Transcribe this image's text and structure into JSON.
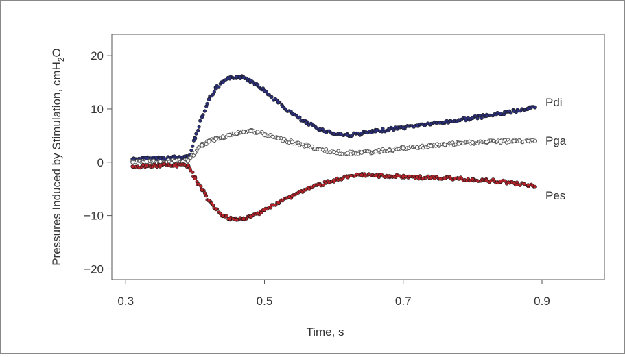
{
  "chart_data": {
    "type": "scatter",
    "xlabel": "Time, s",
    "ylabel_parts": [
      "Pressures Induced by Stimulation, cm",
      "H",
      "2",
      "O"
    ],
    "xlim": [
      0.28,
      0.99
    ],
    "ylim": [
      -22,
      24
    ],
    "x_ticks": [
      0.3,
      0.5,
      0.7,
      0.9
    ],
    "x_tick_labels": [
      "0.3",
      "0.5",
      "0.7",
      "0.9"
    ],
    "y_ticks": [
      20,
      10,
      0,
      -10,
      -20
    ],
    "y_tick_labels": [
      "20",
      "10",
      "0",
      "−10",
      "−20"
    ],
    "grid": false,
    "x": [
      0.31,
      0.33,
      0.35,
      0.37,
      0.39,
      0.4,
      0.41,
      0.42,
      0.43,
      0.44,
      0.45,
      0.46,
      0.47,
      0.48,
      0.49,
      0.5,
      0.52,
      0.54,
      0.56,
      0.58,
      0.6,
      0.62,
      0.64,
      0.66,
      0.68,
      0.7,
      0.72,
      0.74,
      0.76,
      0.78,
      0.8,
      0.82,
      0.84,
      0.86,
      0.88,
      0.89
    ],
    "series": [
      {
        "name": "Pdi",
        "color": "#2c2f7a",
        "values": [
          0.6,
          0.7,
          0.8,
          0.9,
          1.0,
          4.5,
          8.5,
          11.8,
          13.8,
          15.0,
          15.7,
          16.0,
          15.9,
          15.3,
          14.5,
          13.4,
          11.2,
          9.1,
          7.4,
          6.2,
          5.4,
          5.1,
          5.4,
          5.8,
          6.2,
          6.5,
          6.9,
          7.2,
          7.5,
          7.9,
          8.3,
          8.7,
          9.1,
          9.6,
          10.1,
          10.3
        ]
      },
      {
        "name": "Pga",
        "color": "#8a8a8a",
        "values": [
          0.0,
          0.1,
          0.1,
          0.2,
          0.3,
          1.8,
          3.2,
          3.9,
          4.4,
          4.8,
          5.1,
          5.4,
          5.7,
          5.9,
          5.7,
          5.2,
          4.5,
          3.8,
          3.1,
          2.4,
          1.9,
          1.7,
          1.8,
          2.0,
          2.3,
          2.6,
          2.8,
          3.1,
          3.3,
          3.5,
          3.7,
          3.8,
          3.9,
          4.0,
          4.0,
          4.0
        ]
      },
      {
        "name": "Pes",
        "color": "#b8232a",
        "values": [
          -0.8,
          -0.7,
          -0.6,
          -0.6,
          -0.6,
          -3.0,
          -5.2,
          -7.2,
          -8.8,
          -10.0,
          -10.6,
          -10.8,
          -10.6,
          -10.2,
          -9.6,
          -8.9,
          -7.6,
          -6.3,
          -5.1,
          -4.2,
          -3.4,
          -2.8,
          -2.4,
          -2.5,
          -2.6,
          -2.7,
          -2.8,
          -2.9,
          -3.0,
          -3.1,
          -3.2,
          -3.4,
          -3.6,
          -3.9,
          -4.3,
          -4.6
        ]
      }
    ]
  }
}
